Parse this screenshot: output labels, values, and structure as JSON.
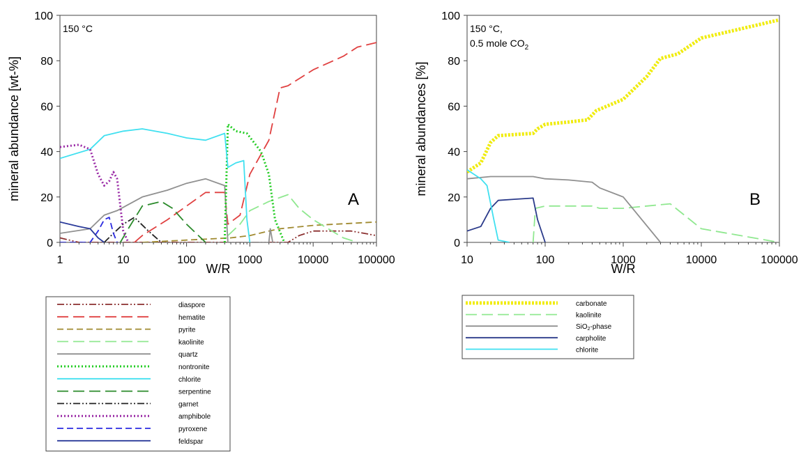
{
  "chart_data": [
    {
      "type": "line",
      "panel_label": "A",
      "annotation": "150 °C",
      "xlabel": "W/R",
      "ylabel": "mineral abundance [wt-%]",
      "x_scale": "log",
      "xlim": [
        1,
        100000
      ],
      "ylim": [
        0,
        100
      ],
      "x_ticks": [
        "1",
        "10",
        "100",
        "1000",
        "10000",
        "100000"
      ],
      "y_ticks": [
        "0",
        "20",
        "40",
        "60",
        "80",
        "100"
      ],
      "legend_position": "below",
      "series": [
        {
          "name": "diaspore",
          "color": "#8b2f2f",
          "dash": "dash-dot-dot",
          "points": [
            [
              1,
              2
            ],
            [
              2,
              0
            ],
            [
              4000,
              0
            ],
            [
              6000,
              3
            ],
            [
              10000,
              5
            ],
            [
              40000,
              5
            ],
            [
              100000,
              3
            ]
          ]
        },
        {
          "name": "hematite",
          "color": "#e04040",
          "dash": "long-dash",
          "points": [
            [
              15,
              0
            ],
            [
              20,
              3
            ],
            [
              50,
              10
            ],
            [
              100,
              16
            ],
            [
              200,
              22
            ],
            [
              400,
              22
            ],
            [
              450,
              8
            ],
            [
              700,
              12
            ],
            [
              1000,
              30
            ],
            [
              2000,
              45
            ],
            [
              3000,
              68
            ],
            [
              4000,
              69
            ],
            [
              10000,
              76
            ],
            [
              30000,
              82
            ],
            [
              50000,
              86
            ],
            [
              100000,
              88
            ]
          ]
        },
        {
          "name": "pyrite",
          "color": "#a08a30",
          "dash": "dash",
          "points": [
            [
              20,
              0
            ],
            [
              100,
              1
            ],
            [
              500,
              2
            ],
            [
              1000,
              3
            ],
            [
              2000,
              5
            ],
            [
              3000,
              6
            ],
            [
              10000,
              7.5
            ],
            [
              100000,
              9
            ]
          ]
        },
        {
          "name": "kaolinite",
          "color": "#90e890",
          "dash": "long-dash",
          "points": [
            [
              450,
              3
            ],
            [
              700,
              8
            ],
            [
              1000,
              14
            ],
            [
              2000,
              18
            ],
            [
              4000,
              21
            ],
            [
              6000,
              15
            ],
            [
              10000,
              10
            ],
            [
              30000,
              2
            ],
            [
              50000,
              0
            ]
          ]
        },
        {
          "name": "quartz",
          "color": "#909090",
          "dash": "solid",
          "points": [
            [
              1,
              4
            ],
            [
              3,
              6
            ],
            [
              5,
              12
            ],
            [
              8,
              14
            ],
            [
              20,
              20
            ],
            [
              50,
              23
            ],
            [
              100,
              26
            ],
            [
              200,
              28
            ],
            [
              400,
              25
            ],
            [
              450,
              0
            ],
            [
              2000,
              0
            ],
            [
              2100,
              6
            ],
            [
              2300,
              0
            ]
          ]
        },
        {
          "name": "nontronite",
          "color": "#22cc22",
          "dash": "dotted",
          "points": [
            [
              400,
              0
            ],
            [
              450,
              52
            ],
            [
              600,
              49
            ],
            [
              900,
              48
            ],
            [
              1500,
              40
            ],
            [
              2000,
              30
            ],
            [
              2500,
              10
            ],
            [
              3500,
              0
            ]
          ]
        },
        {
          "name": "chlorite",
          "color": "#40e0f0",
          "dash": "solid",
          "points": [
            [
              1,
              37
            ],
            [
              3,
              41
            ],
            [
              5,
              47
            ],
            [
              10,
              49
            ],
            [
              20,
              50
            ],
            [
              50,
              48
            ],
            [
              100,
              46
            ],
            [
              200,
              45
            ],
            [
              400,
              48
            ],
            [
              450,
              33
            ],
            [
              600,
              35
            ],
            [
              800,
              36
            ],
            [
              900,
              10
            ],
            [
              1000,
              0
            ]
          ]
        },
        {
          "name": "serpentine",
          "color": "#2a8a2a",
          "dash": "long-dash",
          "points": [
            [
              9,
              0
            ],
            [
              12,
              6
            ],
            [
              20,
              16
            ],
            [
              40,
              18
            ],
            [
              60,
              15
            ],
            [
              100,
              8
            ],
            [
              200,
              0
            ]
          ]
        },
        {
          "name": "garnet",
          "color": "#222222",
          "dash": "dash-dot-dot",
          "points": [
            [
              5,
              0
            ],
            [
              7,
              4
            ],
            [
              10,
              8
            ],
            [
              15,
              11
            ],
            [
              25,
              5
            ],
            [
              40,
              0
            ]
          ]
        },
        {
          "name": "amphibole",
          "color": "#9a2aa6",
          "dash": "dotted",
          "points": [
            [
              1,
              42
            ],
            [
              2,
              43
            ],
            [
              3,
              41
            ],
            [
              4,
              30
            ],
            [
              5,
              25
            ],
            [
              6,
              27
            ],
            [
              7,
              31
            ],
            [
              8,
              28
            ],
            [
              10,
              5
            ],
            [
              12,
              0
            ]
          ]
        },
        {
          "name": "pyroxene",
          "color": "#2a2ae0",
          "dash": "dash",
          "points": [
            [
              1,
              0
            ],
            [
              3,
              0
            ],
            [
              4,
              5
            ],
            [
              5,
              10
            ],
            [
              6,
              11
            ],
            [
              7,
              4
            ],
            [
              8,
              0
            ]
          ]
        },
        {
          "name": "feldspar",
          "color": "#2a3a9a",
          "dash": "solid",
          "points": [
            [
              1,
              9
            ],
            [
              2,
              7
            ],
            [
              3,
              6
            ],
            [
              4,
              2
            ],
            [
              5,
              0
            ]
          ]
        }
      ]
    },
    {
      "type": "line",
      "panel_label": "B",
      "annotation": [
        "150 °C,",
        "0.5 mole CO",
        "2"
      ],
      "xlabel": "W/R",
      "ylabel": "mineral abundances [%]",
      "x_scale": "log",
      "xlim": [
        10,
        100000
      ],
      "ylim": [
        0,
        100
      ],
      "x_ticks": [
        "10",
        "100",
        "1000",
        "10000",
        "100000"
      ],
      "y_ticks": [
        "0",
        "20",
        "40",
        "60",
        "80",
        "100"
      ],
      "legend_position": "below",
      "series": [
        {
          "name": "carbonate",
          "name_parts": [
            "carbonate",
            "",
            ""
          ],
          "color": "#f0ec10",
          "dash": "thick-dotted",
          "points": [
            [
              10,
              31
            ],
            [
              15,
              35
            ],
            [
              20,
              44
            ],
            [
              25,
              47
            ],
            [
              40,
              47.5
            ],
            [
              70,
              48
            ],
            [
              80,
              50
            ],
            [
              100,
              52
            ],
            [
              200,
              53
            ],
            [
              350,
              54
            ],
            [
              450,
              58
            ],
            [
              1000,
              63
            ],
            [
              2000,
              73
            ],
            [
              3000,
              81
            ],
            [
              5000,
              83
            ],
            [
              10000,
              90
            ],
            [
              100000,
              98
            ]
          ]
        },
        {
          "name": "kaolinite",
          "name_parts": [
            "kaolinite",
            "",
            ""
          ],
          "color": "#90e890",
          "dash": "long-dash",
          "points": [
            [
              70,
              0
            ],
            [
              75,
              15
            ],
            [
              100,
              16
            ],
            [
              400,
              16
            ],
            [
              500,
              15
            ],
            [
              1000,
              15
            ],
            [
              2000,
              16
            ],
            [
              4000,
              17
            ],
            [
              10000,
              6
            ],
            [
              100000,
              0
            ]
          ]
        },
        {
          "name": "SiO2-phase",
          "name_parts": [
            "SiO",
            "2",
            "-phase"
          ],
          "color": "#909090",
          "dash": "solid",
          "points": [
            [
              10,
              28
            ],
            [
              20,
              29
            ],
            [
              70,
              29
            ],
            [
              100,
              28
            ],
            [
              200,
              27.5
            ],
            [
              400,
              26.5
            ],
            [
              500,
              24
            ],
            [
              1000,
              20
            ],
            [
              3000,
              0
            ]
          ]
        },
        {
          "name": "carpholite",
          "name_parts": [
            "carpholite",
            "",
            ""
          ],
          "color": "#2a3a8a",
          "dash": "solid",
          "points": [
            [
              10,
              5
            ],
            [
              15,
              7
            ],
            [
              20,
              15
            ],
            [
              25,
              18.5
            ],
            [
              40,
              19
            ],
            [
              70,
              19.5
            ],
            [
              80,
              10
            ],
            [
              100,
              0
            ]
          ]
        },
        {
          "name": "chlorite",
          "name_parts": [
            "chlorite",
            "",
            ""
          ],
          "color": "#40e0f0",
          "dash": "solid",
          "points": [
            [
              10,
              32
            ],
            [
              15,
              28
            ],
            [
              18,
              25
            ],
            [
              22,
              10
            ],
            [
              25,
              1
            ],
            [
              35,
              0
            ]
          ]
        }
      ]
    }
  ]
}
